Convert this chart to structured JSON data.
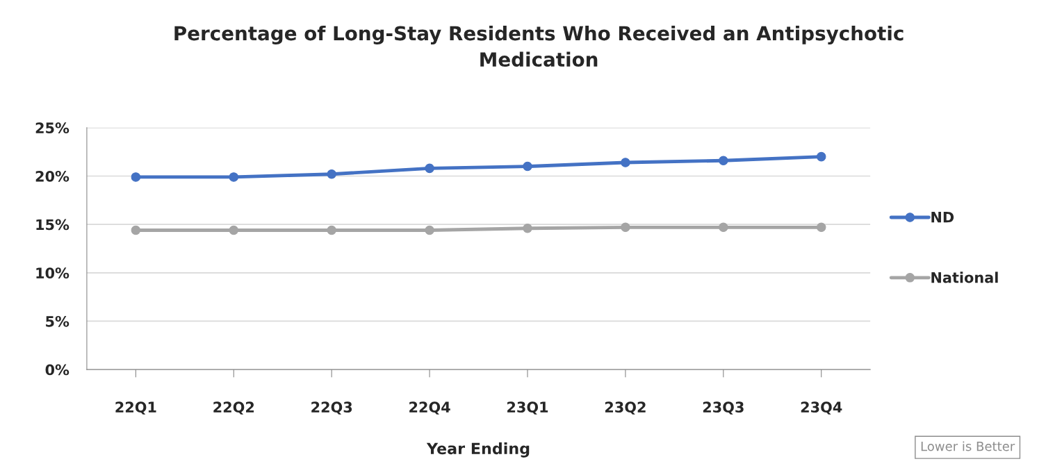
{
  "chart_data": {
    "type": "line",
    "title": "Percentage of Long-Stay Residents Who Received an Antipsychotic Medication",
    "xlabel": "Year Ending",
    "categories": [
      "22Q1",
      "22Q2",
      "22Q3",
      "22Q4",
      "23Q1",
      "23Q2",
      "23Q3",
      "23Q4"
    ],
    "series": [
      {
        "name": "ND",
        "color": "#4472c4",
        "values": [
          19.9,
          19.9,
          20.2,
          20.8,
          21.0,
          21.4,
          21.6,
          22.0
        ]
      },
      {
        "name": "National",
        "color": "#a5a5a5",
        "values": [
          14.4,
          14.4,
          14.4,
          14.4,
          14.6,
          14.7,
          14.7,
          14.7
        ]
      }
    ],
    "ylim": [
      0,
      25
    ],
    "yticks": [
      {
        "value": 0,
        "label": "0%"
      },
      {
        "value": 5,
        "label": "5%"
      },
      {
        "value": 10,
        "label": "10%"
      },
      {
        "value": 15,
        "label": "15%"
      },
      {
        "value": 20,
        "label": "20%"
      },
      {
        "value": 25,
        "label": "25%"
      }
    ],
    "grid": "y",
    "legend": "right",
    "marker": "circle",
    "line_style": "solid",
    "annotations": [
      "Lower is Better"
    ]
  }
}
